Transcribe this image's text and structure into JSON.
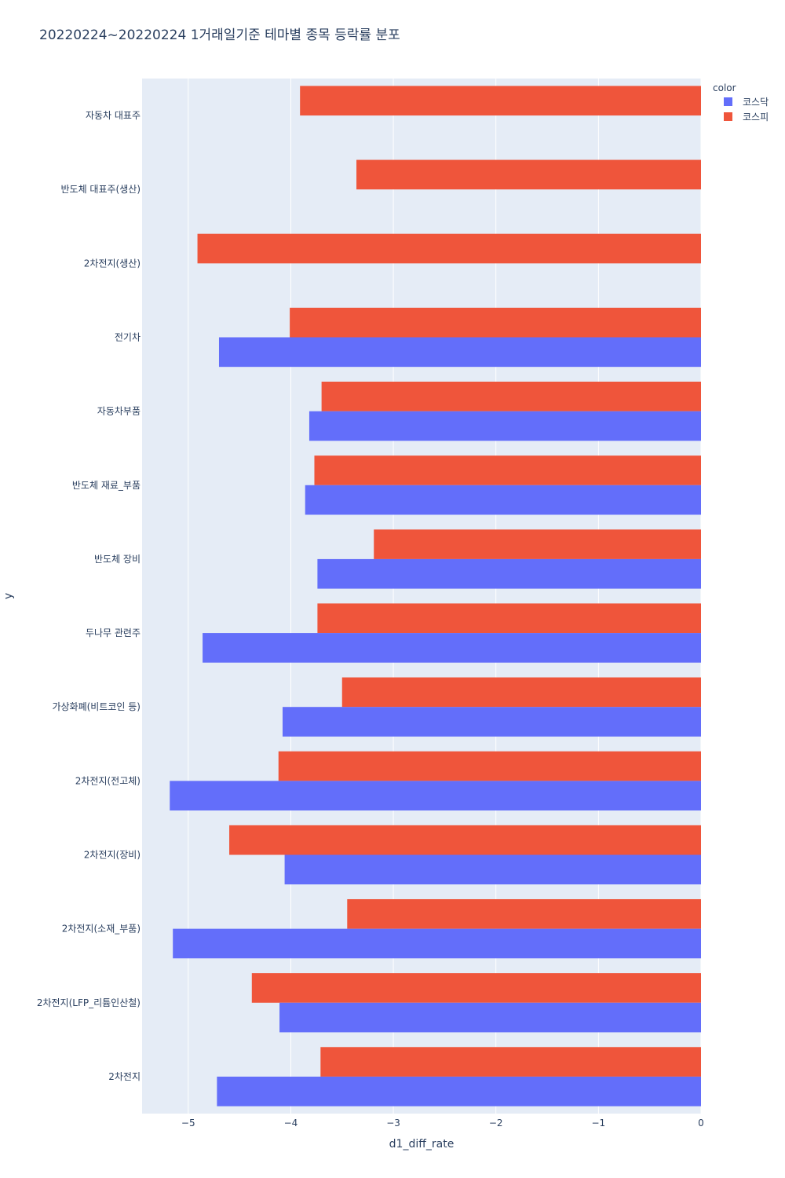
{
  "chart_data": {
    "type": "bar",
    "orientation": "horizontal",
    "title": "20220224~20220224 1거래일기준 테마별 종목 등락률 분포",
    "xlabel": "d1_diff_rate",
    "ylabel": "y",
    "xlim": [
      -5.45,
      0
    ],
    "x_ticks": [
      -5,
      -4,
      -3,
      -2,
      -1,
      0
    ],
    "x_tick_labels": [
      "−5",
      "−4",
      "−3",
      "−2",
      "−1",
      "0"
    ],
    "categories": [
      "자동차 대표주",
      "반도체 대표주(생산)",
      "2차전지(생산)",
      "전기차",
      "자동차부품",
      "반도체 재료_부품",
      "반도체 장비",
      "두나무 관련주",
      "가상화폐(비트코인 등)",
      "2차전지(전고체)",
      "2차전지(장비)",
      "2차전지(소재_부품)",
      "2차전지(LFP_리튬인산철)",
      "2차전지"
    ],
    "legend_title": "color",
    "series": [
      {
        "name": "코스피",
        "color": "#EF553B",
        "values": [
          -3.91,
          -3.36,
          -4.91,
          -4.01,
          -3.7,
          -3.77,
          -3.19,
          -3.74,
          -3.5,
          -4.12,
          -4.6,
          -3.45,
          -4.38,
          -3.71
        ]
      },
      {
        "name": "코스닥",
        "color": "#636EFA",
        "values": [
          null,
          null,
          null,
          -4.7,
          -3.82,
          -3.86,
          -3.74,
          -4.86,
          -4.08,
          -5.18,
          -4.06,
          -5.15,
          -4.11,
          -4.72
        ]
      }
    ],
    "plot_bgcolor": "#E5ECF6",
    "grid_color": "#ffffff"
  }
}
